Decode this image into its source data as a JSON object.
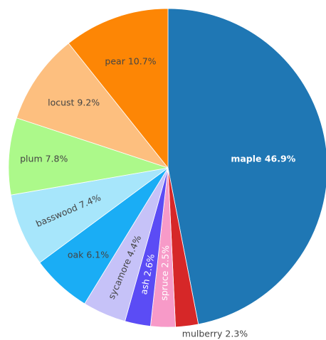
{
  "chart_data": {
    "type": "pie",
    "title": "",
    "slices": [
      {
        "label": "maple",
        "value": 46.9,
        "text": "maple 46.9%",
        "color": "#1f77b4",
        "text_color": "#ffffff",
        "bold": true
      },
      {
        "label": "mulberry",
        "value": 2.3,
        "text": "mulberry 2.3%",
        "color": "#d62728",
        "text_color": "#444444"
      },
      {
        "label": "spruce",
        "value": 2.5,
        "text": "spruce 2.5%",
        "color": "#f79ac8",
        "text_color": "#ffffff"
      },
      {
        "label": "ash",
        "value": 2.6,
        "text": "ash 2.6%",
        "color": "#5b4cf5",
        "text_color": "#ffffff"
      },
      {
        "label": "sycamore",
        "value": 4.4,
        "text": "sycamore 4.4%",
        "color": "#c6c2f8",
        "text_color": "#444444"
      },
      {
        "label": "oak",
        "value": 6.1,
        "text": "oak 6.1%",
        "color": "#1aadf5",
        "text_color": "#444444"
      },
      {
        "label": "basswood",
        "value": 7.4,
        "text": "basswood 7.4%",
        "color": "#a7e6fb",
        "text_color": "#444444"
      },
      {
        "label": "plum",
        "value": 7.8,
        "text": "plum 7.8%",
        "color": "#acf98a",
        "text_color": "#444444"
      },
      {
        "label": "locust",
        "value": 9.2,
        "text": "locust 9.2%",
        "color": "#fdbf7f",
        "text_color": "#444444"
      },
      {
        "label": "pear",
        "value": 10.7,
        "text": "pear 10.7%",
        "color": "#fd8605",
        "text_color": "#444444"
      }
    ]
  }
}
